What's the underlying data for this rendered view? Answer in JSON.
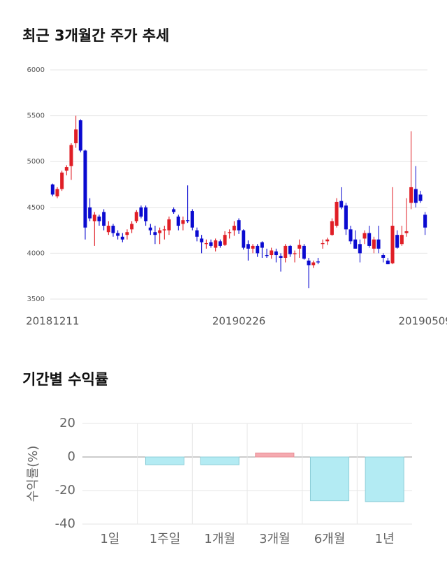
{
  "chart_data": [
    {
      "type": "candlestick",
      "title": "최근 3개월간 주가 추세",
      "categories": [
        "20181211",
        null,
        null,
        null,
        null,
        null,
        null,
        null,
        null,
        null,
        null,
        null,
        null,
        null,
        null,
        null,
        null,
        null,
        null,
        null,
        null,
        null,
        null,
        null,
        null,
        null,
        null,
        null,
        null,
        null,
        null,
        null,
        null,
        null,
        null,
        null,
        null,
        null,
        null,
        null,
        "20190226",
        null,
        null,
        null,
        null,
        null,
        null,
        null,
        null,
        null,
        null,
        null,
        null,
        null,
        null,
        null,
        null,
        null,
        null,
        null,
        null,
        null,
        null,
        null,
        null,
        null,
        null,
        null,
        null,
        null,
        null,
        null,
        null,
        null,
        null,
        null,
        null,
        null,
        null,
        null,
        "20190509"
      ],
      "open": [
        4750,
        4620,
        4700,
        4900,
        4950,
        5200,
        5450,
        5120,
        4500,
        4350,
        4400,
        4450,
        4230,
        4300,
        4220,
        4180,
        4200,
        4260,
        4350,
        4500,
        4500,
        4280,
        4230,
        4220,
        4250,
        4250,
        4480,
        4400,
        4320,
        4360,
        4460,
        4250,
        4160,
        4100,
        4120,
        4060,
        4130,
        4090,
        4220,
        4250,
        4360,
        4250,
        4100,
        4050,
        4080,
        4120,
        3980,
        3980,
        4020,
        3970,
        3950,
        4080,
        3990,
        4050,
        4080,
        3920,
        3870,
        3910,
        4100,
        4130,
        4200,
        4300,
        4570,
        4520,
        4260,
        4150,
        4100,
        4160,
        4220,
        4050,
        4150,
        3980,
        3920,
        3890,
        4200,
        4100,
        4220,
        4550,
        4700,
        4640,
        4420
      ],
      "high": [
        4760,
        4720,
        4900,
        4960,
        5200,
        5500,
        5460,
        5130,
        4600,
        4450,
        4420,
        4480,
        4350,
        4320,
        4250,
        4220,
        4260,
        4350,
        4470,
        4520,
        4520,
        4320,
        4300,
        4280,
        4300,
        4400,
        4500,
        4420,
        4400,
        4740,
        4480,
        4280,
        4200,
        4150,
        4150,
        4160,
        4150,
        4240,
        4260,
        4350,
        4380,
        4260,
        4140,
        4100,
        4100,
        4130,
        4050,
        4060,
        4050,
        4000,
        4100,
        4090,
        4030,
        4150,
        4100,
        3950,
        3920,
        3950,
        4150,
        4170,
        4380,
        4600,
        4720,
        4550,
        4300,
        4250,
        4150,
        4250,
        4300,
        4180,
        4300,
        4000,
        3950,
        4720,
        4250,
        4300,
        4600,
        5330,
        4950,
        4680,
        4450
      ],
      "low": [
        4620,
        4600,
        4680,
        4850,
        4800,
        5150,
        5100,
        4150,
        4350,
        4080,
        4300,
        4250,
        4200,
        4180,
        4150,
        4120,
        4150,
        4220,
        4330,
        4380,
        4300,
        4200,
        4100,
        4100,
        4150,
        4200,
        4430,
        4250,
        4250,
        4330,
        4250,
        4130,
        4000,
        4050,
        4060,
        4020,
        4060,
        4080,
        4160,
        4190,
        4210,
        4040,
        3920,
        4000,
        3960,
        3950,
        3950,
        3940,
        3900,
        3800,
        3900,
        3960,
        3900,
        3950,
        3930,
        3620,
        3840,
        3880,
        4050,
        4090,
        4190,
        4280,
        4480,
        4200,
        4100,
        4050,
        3900,
        4100,
        4060,
        4000,
        4000,
        3900,
        3880,
        3880,
        4050,
        4080,
        4180,
        4480,
        4500,
        4550,
        4200
      ],
      "close": [
        4640,
        4700,
        4880,
        4940,
        5180,
        5350,
        5120,
        4280,
        4380,
        4420,
        4350,
        4300,
        4300,
        4220,
        4190,
        4150,
        4230,
        4320,
        4450,
        4400,
        4350,
        4250,
        4200,
        4250,
        4260,
        4370,
        4450,
        4300,
        4360,
        4350,
        4280,
        4180,
        4120,
        4110,
        4080,
        4140,
        4080,
        4200,
        4230,
        4300,
        4250,
        4060,
        4050,
        4080,
        4000,
        4060,
        3970,
        4030,
        3980,
        3950,
        4080,
        3990,
        4000,
        4090,
        3940,
        3870,
        3900,
        3900,
        4110,
        4150,
        4350,
        4560,
        4500,
        4260,
        4130,
        4050,
        4000,
        4220,
        4080,
        4150,
        4050,
        3950,
        3880,
        4300,
        4060,
        4200,
        4240,
        4720,
        4550,
        4570,
        4280
      ],
      "up_color": "#e01e26",
      "down_color": "#0a0ad0",
      "ylim": [
        3500,
        6000
      ],
      "yticks": [
        3500,
        4000,
        4500,
        5000,
        5500,
        6000
      ],
      "grid": true
    },
    {
      "type": "bar",
      "title": "기간별 수익률",
      "ylabel": "수익률(%)",
      "categories": [
        "1일",
        "1주일",
        "1개월",
        "3개월",
        "6개월",
        "1년"
      ],
      "values": [
        0,
        -4.6,
        -4.6,
        2.4,
        -26.1,
        -26.6
      ],
      "positive_color": "#f5aab0",
      "negative_color": "#b3ebf3",
      "ylim": [
        -40,
        20
      ],
      "yticks": [
        -40,
        -20,
        0,
        20
      ],
      "grid": true
    }
  ]
}
